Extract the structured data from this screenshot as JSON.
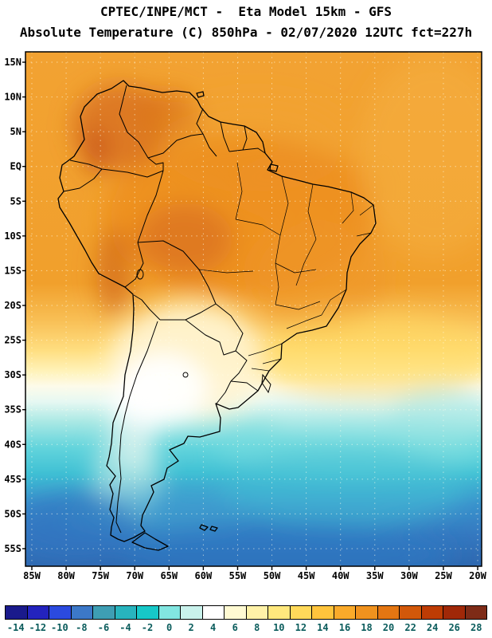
{
  "title": {
    "line1": "CPTEC/INPE/MCT -  Eta Model 15km - GFS",
    "line2": "Absolute Temperature (C) 850hPa - 02/07/2020 12UTC fct=227h"
  },
  "map": {
    "lat_labels": [
      "15N",
      "10N",
      "5N",
      "EQ",
      "5S",
      "10S",
      "15S",
      "20S",
      "25S",
      "30S",
      "35S",
      "40S",
      "45S",
      "50S",
      "55S"
    ],
    "lon_labels": [
      "85W",
      "80W",
      "75W",
      "70W",
      "65W",
      "60W",
      "55W",
      "50W",
      "45W",
      "40W",
      "35W",
      "30W",
      "25W",
      "20W"
    ]
  },
  "colorbar": {
    "tick_labels": [
      "-14",
      "-12",
      "-10",
      "-8",
      "-6",
      "-4",
      "-2",
      "0",
      "2",
      "4",
      "6",
      "8",
      "10",
      "12",
      "14",
      "16",
      "18",
      "20",
      "22",
      "24",
      "26",
      "28"
    ],
    "colors": [
      "#1A1A8C",
      "#2323BE",
      "#2B4ADF",
      "#3C78C8",
      "#3E9EB4",
      "#28B4BE",
      "#17C8C8",
      "#82E6E1",
      "#C9F2EC",
      "#FFFFFF",
      "#FFFAD2",
      "#FFF2A8",
      "#FFE87D",
      "#FFD95A",
      "#FFC43C",
      "#FAAA2A",
      "#F0921E",
      "#E47612",
      "#D2580A",
      "#BE3C04",
      "#A02808",
      "#7E2B17"
    ],
    "label_color": "#0A5C5C"
  },
  "chart_data": {
    "type": "heatmap",
    "title": "Absolute Temperature (C) 850hPa",
    "source": "CPTEC/INPE/MCT - Eta Model 15km - GFS",
    "valid_time": "02/07/2020 12UTC fct=227h",
    "units": "C",
    "levels": [
      -14,
      -12,
      -10,
      -8,
      -6,
      -4,
      -2,
      0,
      2,
      4,
      6,
      8,
      10,
      12,
      14,
      16,
      18,
      20,
      22,
      24,
      26,
      28
    ],
    "lat_ticks": [
      "15N",
      "10N",
      "5N",
      "EQ",
      "5S",
      "10S",
      "15S",
      "20S",
      "25S",
      "30S",
      "35S",
      "40S",
      "45S",
      "50S",
      "55S"
    ],
    "lon_ticks": [
      "85W",
      "80W",
      "75W",
      "70W",
      "65W",
      "60W",
      "55W",
      "50W",
      "45W",
      "40W",
      "35W",
      "30W",
      "25W",
      "20W"
    ],
    "legend_position": "bottom",
    "description_visible": "Warm (orange/red) field over tropical South America, white transition band near 25S-35S, cold (cyan/blue) field south of 35S"
  }
}
